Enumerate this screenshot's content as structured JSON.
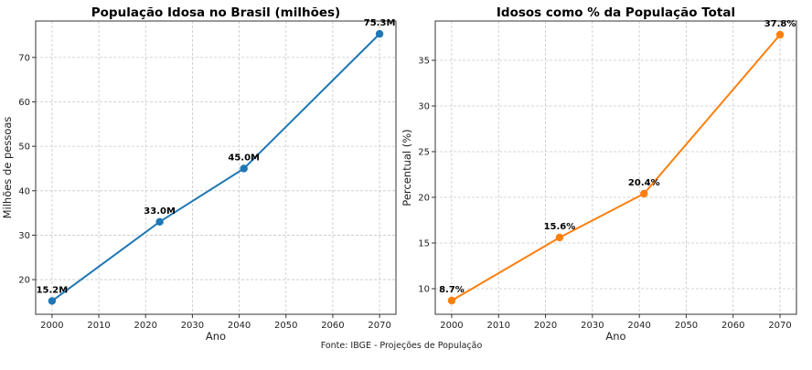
{
  "source_note": "Fonte: IBGE - Projeções de População",
  "chart_data": [
    {
      "type": "line",
      "title": "População Idosa no Brasil (milhões)",
      "xlabel": "Ano",
      "ylabel": "Milhões de pessoas",
      "x": [
        2000,
        2023,
        2041,
        2070
      ],
      "values": [
        15.2,
        33.0,
        45.0,
        75.3
      ],
      "data_labels": [
        "15.2M",
        "33.0M",
        "45.0M",
        "75.3M"
      ],
      "xticks": [
        2000,
        2010,
        2020,
        2030,
        2040,
        2050,
        2060,
        2070
      ],
      "yticks": [
        20,
        30,
        40,
        50,
        60,
        70
      ],
      "xlim": [
        1996.5,
        2073.5
      ],
      "ylim": [
        12.2,
        78.2
      ],
      "grid": true,
      "color": "#1f77b4"
    },
    {
      "type": "line",
      "title": "Idosos como % da População Total",
      "xlabel": "Ano",
      "ylabel": "Percentual (%)",
      "x": [
        2000,
        2023,
        2041,
        2070
      ],
      "values": [
        8.7,
        15.6,
        20.4,
        37.8
      ],
      "data_labels": [
        "8.7%",
        "15.6%",
        "20.4%",
        "37.8%"
      ],
      "xticks": [
        2000,
        2010,
        2020,
        2030,
        2040,
        2050,
        2060,
        2070
      ],
      "yticks": [
        10,
        15,
        20,
        25,
        30,
        35
      ],
      "xlim": [
        1996.5,
        2073.5
      ],
      "ylim": [
        7.2,
        39.3
      ],
      "grid": true,
      "color": "#ff7f0e"
    }
  ]
}
